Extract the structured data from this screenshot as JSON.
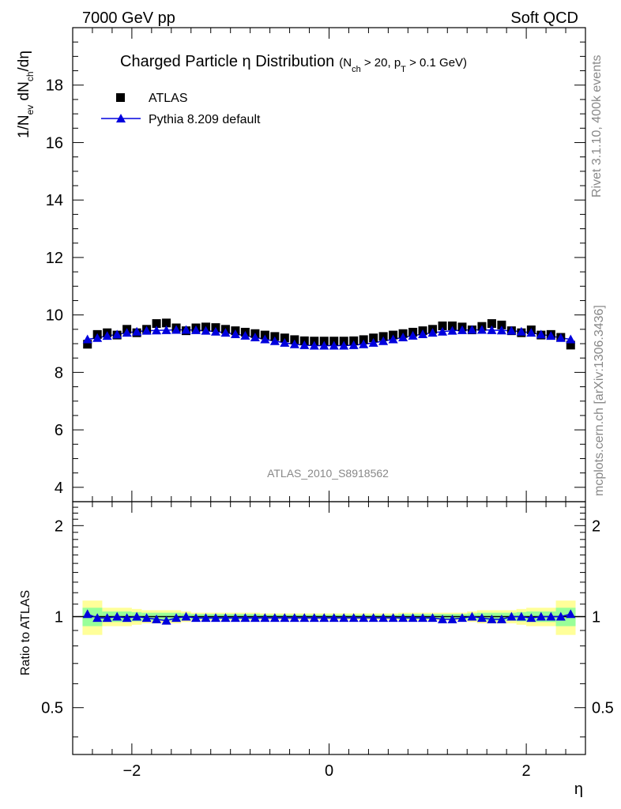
{
  "header": {
    "energy_label": "7000 GeV pp",
    "process_label": "Soft QCD",
    "rivet_label": "Rivet 3.1.10,  400k events",
    "mcplots_label": "mcplots.cern.ch [arXiv:1306.3436]",
    "analysis_label": "ATLAS_2010_S8918562"
  },
  "title": {
    "main": "Charged Particle η Distribution",
    "cut_a": "(N",
    "cut_a_sub": "ch",
    "cut_b": " > 20, p",
    "cut_b_sub": "T",
    "cut_c": " > 0.1 GeV)"
  },
  "ylabel": {
    "p1": "1/N",
    "s1": "ev",
    "p2": " dN",
    "s2": "ch",
    "p3": "/dη"
  },
  "ratio_ylabel": "Ratio to ATLAS",
  "xlabel": "η",
  "legend": {
    "data_label": "ATLAS",
    "mc_label": "Pythia 8.209 default"
  },
  "colors": {
    "data": "#000000",
    "mc": "#0000dd",
    "band_outer": "#ffff99",
    "band_inner": "#99ff99"
  },
  "chart_data": {
    "type": "scatter",
    "x": [
      -2.45,
      -2.35,
      -2.25,
      -2.15,
      -2.05,
      -1.95,
      -1.85,
      -1.75,
      -1.65,
      -1.55,
      -1.45,
      -1.35,
      -1.25,
      -1.15,
      -1.05,
      -0.95,
      -0.85,
      -0.75,
      -0.65,
      -0.55,
      -0.45,
      -0.35,
      -0.25,
      -0.15,
      -0.05,
      0.05,
      0.15,
      0.25,
      0.35,
      0.45,
      0.55,
      0.65,
      0.75,
      0.85,
      0.95,
      1.05,
      1.15,
      1.25,
      1.35,
      1.45,
      1.55,
      1.65,
      1.75,
      1.85,
      1.95,
      2.05,
      2.15,
      2.25,
      2.35,
      2.45
    ],
    "series": [
      {
        "name": "ATLAS",
        "values": [
          8.98,
          9.32,
          9.38,
          9.3,
          9.5,
          9.38,
          9.5,
          9.7,
          9.72,
          9.55,
          9.45,
          9.55,
          9.58,
          9.56,
          9.5,
          9.45,
          9.4,
          9.35,
          9.3,
          9.25,
          9.2,
          9.14,
          9.1,
          9.09,
          9.09,
          9.09,
          9.09,
          9.1,
          9.14,
          9.2,
          9.25,
          9.3,
          9.35,
          9.4,
          9.45,
          9.5,
          9.62,
          9.62,
          9.58,
          9.48,
          9.6,
          9.7,
          9.65,
          9.45,
          9.38,
          9.48,
          9.3,
          9.32,
          9.22,
          8.95
        ]
      },
      {
        "name": "Pythia 8.209 default",
        "values": [
          9.15,
          9.2,
          9.27,
          9.32,
          9.38,
          9.42,
          9.45,
          9.46,
          9.47,
          9.48,
          9.48,
          9.47,
          9.45,
          9.42,
          9.38,
          9.33,
          9.28,
          9.22,
          9.15,
          9.09,
          9.03,
          8.98,
          8.95,
          8.93,
          8.93,
          8.93,
          8.93,
          8.95,
          8.98,
          9.03,
          9.09,
          9.15,
          9.22,
          9.28,
          9.33,
          9.38,
          9.42,
          9.45,
          9.47,
          9.48,
          9.48,
          9.47,
          9.46,
          9.45,
          9.42,
          9.38,
          9.32,
          9.27,
          9.2,
          9.15
        ]
      }
    ],
    "ratio": [
      1.02,
      0.99,
      0.99,
      1.0,
      0.99,
      1.0,
      0.99,
      0.98,
      0.97,
      0.99,
      1.0,
      0.99,
      0.99,
      0.99,
      0.99,
      0.99,
      0.99,
      0.99,
      0.99,
      0.99,
      0.99,
      0.99,
      0.99,
      0.99,
      0.99,
      0.99,
      0.99,
      0.99,
      0.99,
      0.99,
      0.99,
      0.99,
      0.99,
      0.99,
      0.99,
      0.99,
      0.98,
      0.98,
      0.99,
      1.0,
      0.99,
      0.98,
      0.98,
      1.0,
      1.0,
      0.99,
      1.0,
      1.0,
      1.0,
      1.02
    ],
    "band_edges": [
      -2.5,
      -2.3,
      -2.0,
      -1.9,
      -1.5,
      -1.4,
      -0.7,
      0.7,
      1.4,
      1.5,
      1.9,
      2.0,
      2.3,
      2.5
    ],
    "band_outer": [
      0.13,
      0.07,
      0.06,
      0.05,
      0.04,
      0.03,
      0.025,
      0.03,
      0.04,
      0.05,
      0.06,
      0.07,
      0.13
    ],
    "band_inner": [
      0.07,
      0.04,
      0.035,
      0.03,
      0.025,
      0.02,
      0.015,
      0.02,
      0.025,
      0.03,
      0.035,
      0.04,
      0.07
    ],
    "xlim": [
      -2.6,
      2.6
    ],
    "ylim": [
      3.5,
      20
    ],
    "ratio_ylim": [
      0.35,
      2.4
    ],
    "xticks": [
      -2,
      0,
      2
    ],
    "xtick_labels": [
      "−2",
      "0",
      "2"
    ],
    "yticks": [
      4,
      6,
      8,
      10,
      12,
      14,
      16,
      18
    ],
    "ytick_labels": [
      "4",
      "6",
      "8",
      "10",
      "12",
      "14",
      "16",
      "18"
    ],
    "ratio_yticks": [
      0.5,
      1,
      2
    ],
    "ratio_ytick_labels": [
      "0.5",
      "1",
      "2"
    ],
    "ratio_ylog": true,
    "grid": false,
    "legend_position": "top-left"
  }
}
